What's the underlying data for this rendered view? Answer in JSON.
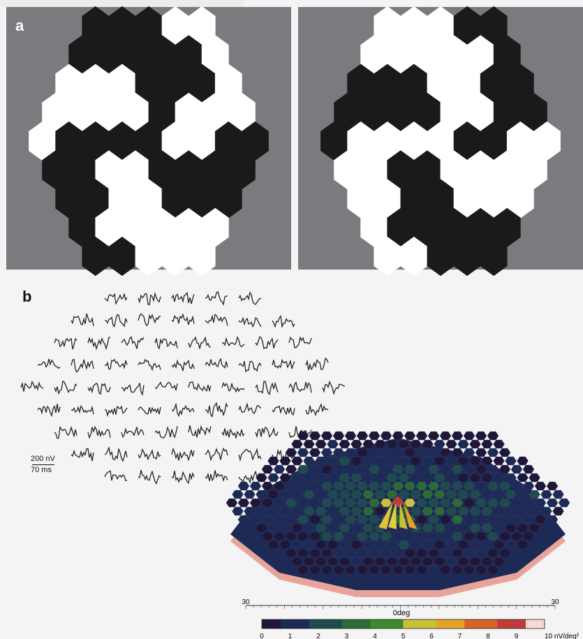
{
  "panel_a": {
    "label": "a",
    "colors": {
      "background": "#7b7b7f",
      "white": "#ffffff",
      "black": "#1a1a1a"
    },
    "stimulus_patterns": 2
  },
  "panel_b": {
    "label": "b",
    "scale_voltage": "200 nV",
    "scale_time": "70 ms",
    "trace_rows": [
      5,
      7,
      8,
      9,
      10,
      9,
      8,
      7,
      5
    ],
    "topography": {
      "axis_left": "30",
      "axis_center": "0deg",
      "axis_right": "30",
      "colorbar_ticks": [
        "0",
        "1",
        "2",
        "3",
        "4",
        "5",
        "6",
        "7",
        "8",
        "9"
      ],
      "colorbar_unit_label": "10 nV/deg²",
      "colormap": [
        "#1e1737",
        "#1d2a55",
        "#1f4a4e",
        "#2a6b36",
        "#3d8a2c",
        "#c8c23a",
        "#e3a326",
        "#d6612a",
        "#c33a3a",
        "#f5d8d8"
      ]
    }
  }
}
